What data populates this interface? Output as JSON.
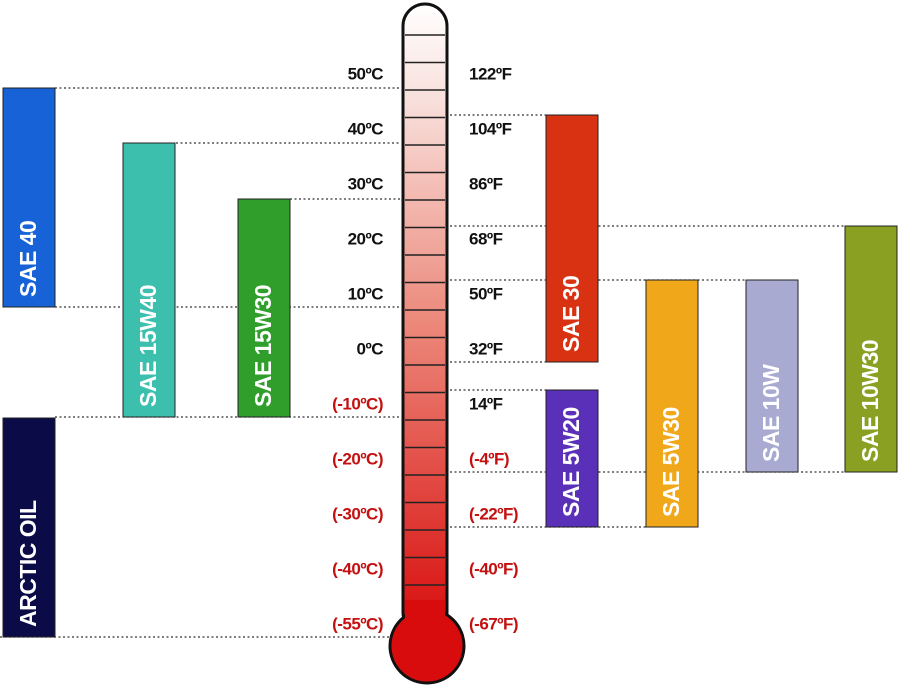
{
  "celsius": [
    "50ºC",
    "40ºC",
    "30ºC",
    "20ºC",
    "10ºC",
    "0ºC",
    "(-10ºC)",
    "(-20ºC)",
    "(-30ºC)",
    "(-40ºC)",
    "(-55ºC)"
  ],
  "fahrenheit": [
    "122ºF",
    "104ºF",
    "86ºF",
    "68ºF",
    "50ºF",
    "32ºF",
    "14ºF",
    "(-4ºF)",
    "(-22ºF)",
    "(-40ºF)",
    "(-67ºF)"
  ],
  "oils": [
    {
      "label": "SAE 40",
      "color": "#1662d6"
    },
    {
      "label": "SAE 15W40",
      "color": "#3dbfae"
    },
    {
      "label": "SAE 15W30",
      "color": "#2f9e2b"
    },
    {
      "label": "ARCTIC OIL",
      "color": "#0b0b48"
    },
    {
      "label": "SAE 30",
      "color": "#d83212"
    },
    {
      "label": "SAE 5W20",
      "color": "#5a30b8"
    },
    {
      "label": "SAE 5W30",
      "color": "#f0a81a"
    },
    {
      "label": "SAE 10W",
      "color": "#a8aad2"
    },
    {
      "label": "SAE 10W30",
      "color": "#8aa022"
    }
  ]
}
